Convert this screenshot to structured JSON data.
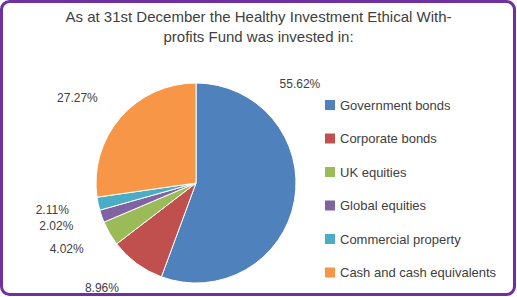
{
  "chart_data": {
    "type": "pie",
    "title": [
      "As at 31st December the Healthy Investment Ethical With-",
      "profits Fund was invested in:"
    ],
    "categories": [
      "Government bonds",
      "Corporate bonds",
      "UK equities",
      "Global equities",
      "Commercial property",
      "Cash and cash equivalents"
    ],
    "values": [
      55.62,
      8.96,
      4.02,
      2.02,
      2.11,
      27.27
    ],
    "value_labels": [
      "55.62%",
      "8.96%",
      "4.02%",
      "2.02%",
      "2.11%",
      "27.27%"
    ],
    "colors": [
      "#4f81bd",
      "#c0504d",
      "#9bbb59",
      "#8064a2",
      "#4bacc6",
      "#f79646"
    ],
    "data_labels": true,
    "legend": "right"
  }
}
